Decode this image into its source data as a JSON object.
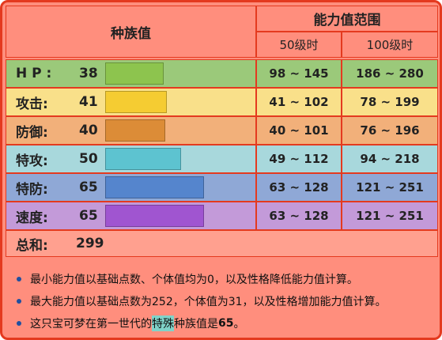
{
  "header": {
    "base_stats": "种族值",
    "stat_range": "能力值范围",
    "lv50": "50级时",
    "lv100": "100级时"
  },
  "stats": [
    {
      "label": "H P :",
      "value": "38",
      "lv50": "98 ~ 145",
      "lv100": "186 ~ 280",
      "row_color": "#9bc97a",
      "bar_color": "#8dc44e",
      "fill": 0.3
    },
    {
      "label": "攻击:",
      "value": "41",
      "lv50": "41 ~ 102",
      "lv100": "78 ~ 199",
      "row_color": "#f9e08a",
      "bar_color": "#f5cc32",
      "fill": 0.32
    },
    {
      "label": "防御:",
      "value": "40",
      "lv50": "40 ~ 101",
      "lv100": "76 ~ 196",
      "row_color": "#f2b07a",
      "bar_color": "#dc8c37",
      "fill": 0.31
    },
    {
      "label": "特攻:",
      "value": "50",
      "lv50": "49 ~ 112",
      "lv100": "94 ~ 218",
      "row_color": "#a8d8dc",
      "bar_color": "#5dc3d0",
      "fill": 0.39
    },
    {
      "label": "特防:",
      "value": "65",
      "lv50": "63 ~ 128",
      "lv100": "121 ~ 251",
      "row_color": "#8fa8d6",
      "bar_color": "#5585cd",
      "fill": 0.51
    },
    {
      "label": "速度:",
      "value": "65",
      "lv50": "63 ~ 128",
      "lv100": "121 ~ 251",
      "row_color": "#c39ad9",
      "bar_color": "#a055d0",
      "fill": 0.51
    }
  ],
  "total": {
    "label": "总和:",
    "value": "299"
  },
  "notes": {
    "n1": "最小能力值以基础点数、个体值均为0，以及性格降低能力值计算。",
    "n2": "最大能力值以基础点数为252，个体值为31，以及性格增加能力值计算。",
    "n3_a": "这只宝可梦在第一世代的",
    "n3_hl": "特殊",
    "n3_b": "种族值是",
    "n3_num": "65",
    "n3_end": "。"
  },
  "colors": {
    "border": "#e43a1f",
    "background": "#ff8e7d"
  }
}
